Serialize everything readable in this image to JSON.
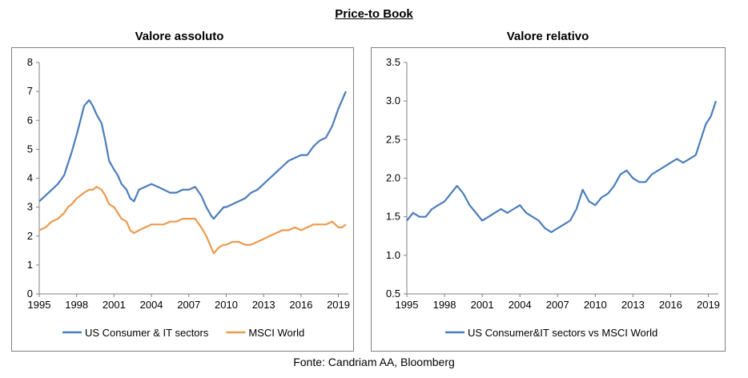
{
  "title": "Price-to Book",
  "source": "Fonte: Candriam AA, Bloomberg",
  "colors": {
    "blue": "#4a7ebb",
    "orange": "#ed9a4e"
  },
  "chart_data": [
    {
      "type": "line",
      "title": "Valore assoluto",
      "xlim": [
        1995,
        2019.8
      ],
      "ylim": [
        0,
        8
      ],
      "xticks": [
        "1995",
        "1998",
        "2001",
        "2004",
        "2007",
        "2010",
        "2013",
        "2016",
        "2019"
      ],
      "yticks": [
        "0",
        "1",
        "2",
        "3",
        "4",
        "5",
        "6",
        "7",
        "8"
      ],
      "grid": false,
      "legend": "bottom",
      "series": [
        {
          "name": "US Consumer & IT sectors",
          "color": "#4a7ebb",
          "x": [
            1995,
            1995.5,
            1996,
            1996.5,
            1997,
            1997.3,
            1997.6,
            1998,
            1998.3,
            1998.6,
            1999,
            1999.3,
            1999.6,
            2000,
            2000.3,
            2000.6,
            2001,
            2001.3,
            2001.6,
            2002,
            2002.3,
            2002.6,
            2003,
            2003.5,
            2004,
            2004.5,
            2005,
            2005.5,
            2006,
            2006.5,
            2007,
            2007.5,
            2008,
            2008.4,
            2008.8,
            2009,
            2009.4,
            2009.8,
            2010,
            2010.5,
            2011,
            2011.5,
            2012,
            2012.5,
            2013,
            2013.5,
            2014,
            2014.5,
            2015,
            2015.5,
            2016,
            2016.5,
            2017,
            2017.5,
            2018,
            2018.5,
            2019,
            2019.3,
            2019.6
          ],
          "values": [
            3.2,
            3.4,
            3.6,
            3.8,
            4.1,
            4.5,
            4.9,
            5.5,
            6.0,
            6.5,
            6.7,
            6.5,
            6.2,
            5.9,
            5.3,
            4.6,
            4.3,
            4.1,
            3.8,
            3.6,
            3.3,
            3.2,
            3.6,
            3.7,
            3.8,
            3.7,
            3.6,
            3.5,
            3.5,
            3.6,
            3.6,
            3.7,
            3.4,
            3.0,
            2.7,
            2.6,
            2.8,
            3.0,
            3.0,
            3.1,
            3.2,
            3.3,
            3.5,
            3.6,
            3.8,
            4.0,
            4.2,
            4.4,
            4.6,
            4.7,
            4.8,
            4.8,
            5.1,
            5.3,
            5.4,
            5.8,
            6.4,
            6.7,
            7.0
          ]
        },
        {
          "name": "MSCI World",
          "color": "#ed9a4e",
          "x": [
            1995,
            1995.5,
            1996,
            1996.5,
            1997,
            1997.3,
            1997.6,
            1998,
            1998.3,
            1998.6,
            1999,
            1999.3,
            1999.6,
            2000,
            2000.3,
            2000.6,
            2001,
            2001.3,
            2001.6,
            2002,
            2002.3,
            2002.6,
            2003,
            2003.5,
            2004,
            2004.5,
            2005,
            2005.5,
            2006,
            2006.5,
            2007,
            2007.5,
            2008,
            2008.4,
            2008.8,
            2009,
            2009.4,
            2009.8,
            2010,
            2010.5,
            2011,
            2011.5,
            2012,
            2012.5,
            2013,
            2013.5,
            2014,
            2014.5,
            2015,
            2015.5,
            2016,
            2016.5,
            2017,
            2017.5,
            2018,
            2018.5,
            2019,
            2019.3,
            2019.6
          ],
          "values": [
            2.2,
            2.3,
            2.5,
            2.6,
            2.8,
            3.0,
            3.1,
            3.3,
            3.4,
            3.5,
            3.6,
            3.6,
            3.7,
            3.6,
            3.4,
            3.1,
            3.0,
            2.8,
            2.6,
            2.5,
            2.2,
            2.1,
            2.2,
            2.3,
            2.4,
            2.4,
            2.4,
            2.5,
            2.5,
            2.6,
            2.6,
            2.6,
            2.3,
            2.0,
            1.6,
            1.4,
            1.6,
            1.7,
            1.7,
            1.8,
            1.8,
            1.7,
            1.7,
            1.8,
            1.9,
            2.0,
            2.1,
            2.2,
            2.2,
            2.3,
            2.2,
            2.3,
            2.4,
            2.4,
            2.4,
            2.5,
            2.3,
            2.3,
            2.4
          ]
        }
      ]
    },
    {
      "type": "line",
      "title": "Valore relativo",
      "xlim": [
        1995,
        2019.8
      ],
      "ylim": [
        0.5,
        3.5
      ],
      "xticks": [
        "1995",
        "1998",
        "2001",
        "2004",
        "2007",
        "2010",
        "2013",
        "2016",
        "2019"
      ],
      "yticks": [
        "0.5",
        "1.0",
        "1.5",
        "2.0",
        "2.5",
        "3.0",
        "3.5"
      ],
      "grid": false,
      "legend": "bottom",
      "series": [
        {
          "name": "US Consumer&IT sectors vs MSCI World",
          "color": "#4a7ebb",
          "x": [
            1995,
            1995.5,
            1996,
            1996.5,
            1997,
            1997.5,
            1998,
            1998.5,
            1999,
            1999.5,
            2000,
            2000.5,
            2001,
            2001.5,
            2002,
            2002.5,
            2003,
            2003.5,
            2004,
            2004.5,
            2005,
            2005.5,
            2006,
            2006.5,
            2007,
            2007.5,
            2008,
            2008.5,
            2009,
            2009.5,
            2010,
            2010.5,
            2011,
            2011.5,
            2012,
            2012.5,
            2013,
            2013.5,
            2014,
            2014.5,
            2015,
            2015.5,
            2016,
            2016.5,
            2017,
            2017.5,
            2018,
            2018.4,
            2018.8,
            2019.2,
            2019.6
          ],
          "values": [
            1.45,
            1.55,
            1.5,
            1.5,
            1.6,
            1.65,
            1.7,
            1.8,
            1.9,
            1.8,
            1.65,
            1.55,
            1.45,
            1.5,
            1.55,
            1.6,
            1.55,
            1.6,
            1.65,
            1.55,
            1.5,
            1.45,
            1.35,
            1.3,
            1.35,
            1.4,
            1.45,
            1.6,
            1.85,
            1.7,
            1.65,
            1.75,
            1.8,
            1.9,
            2.05,
            2.1,
            2.0,
            1.95,
            1.95,
            2.05,
            2.1,
            2.15,
            2.2,
            2.25,
            2.2,
            2.25,
            2.3,
            2.5,
            2.7,
            2.8,
            3.0
          ]
        }
      ]
    }
  ]
}
